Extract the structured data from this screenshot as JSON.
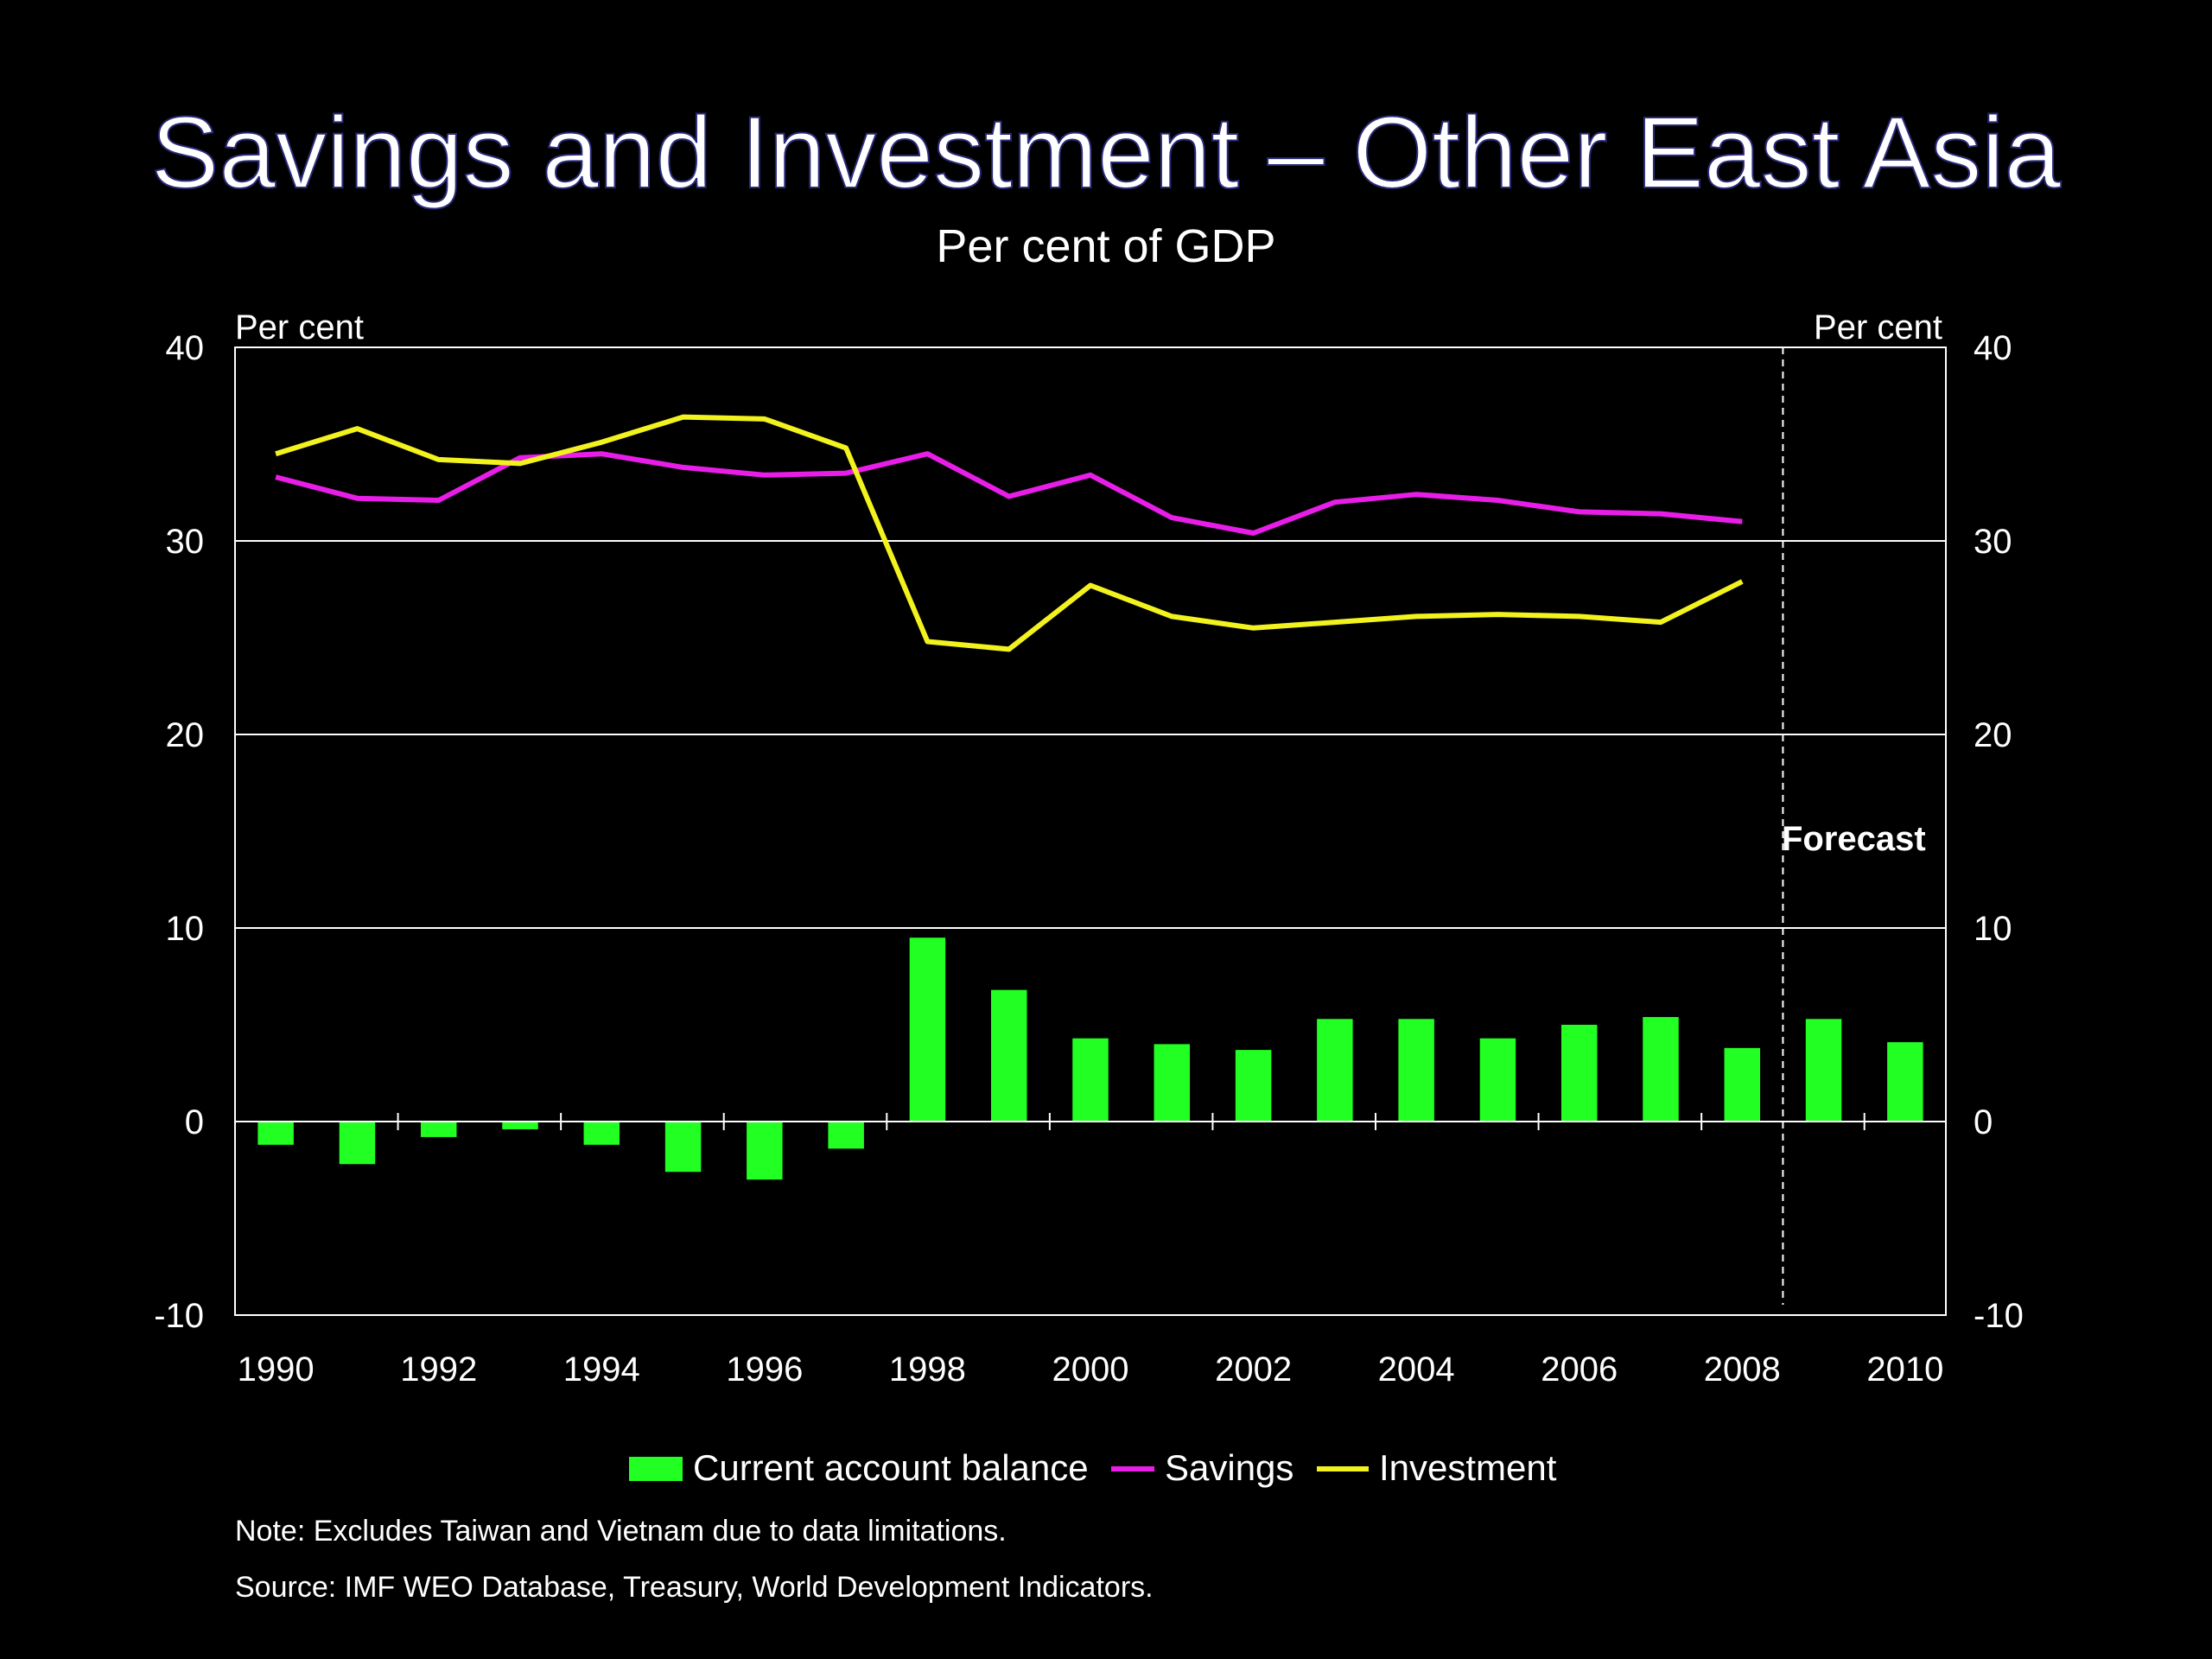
{
  "page": {
    "title": "Savings and Investment – Other East Asia",
    "subtitle": "Per cent of GDP",
    "note": "Note: Excludes Taiwan and Vietnam due to data limitations.",
    "source": "Source: IMF WEO Database, Treasury, World Development Indicators."
  },
  "chart_data": {
    "type": "bar",
    "x": [
      1990,
      1991,
      1992,
      1993,
      1994,
      1995,
      1996,
      1997,
      1998,
      1999,
      2000,
      2001,
      2002,
      2003,
      2004,
      2005,
      2006,
      2007,
      2008,
      2009,
      2010
    ],
    "x_tick_labels": [
      "1990",
      "1992",
      "1994",
      "1996",
      "1998",
      "2000",
      "2002",
      "2004",
      "2006",
      "2008",
      "2010"
    ],
    "ylim": [
      -10,
      40
    ],
    "y_ticks": [
      -10,
      0,
      10,
      20,
      30,
      40
    ],
    "y_tick_labels": [
      "-10",
      "0",
      "10",
      "20",
      "30",
      "40"
    ],
    "ylabel_left": "Per cent",
    "ylabel_right": "Per cent",
    "grid": true,
    "forecast_label": "Forecast",
    "forecast_start_after": 2008,
    "legend_position": "bottom",
    "series": [
      {
        "name": "Current account balance",
        "type": "bar",
        "color": "#22ff22",
        "values": [
          -1.2,
          -2.2,
          -0.8,
          -0.4,
          -1.2,
          -2.6,
          -3.0,
          -1.4,
          9.5,
          6.8,
          4.3,
          4.0,
          3.7,
          5.3,
          5.3,
          4.3,
          5.0,
          5.4,
          3.8,
          5.3,
          4.1
        ]
      },
      {
        "name": "Savings",
        "type": "line",
        "color": "#e81ee8",
        "values": [
          33.3,
          32.2,
          32.1,
          34.3,
          34.5,
          33.8,
          33.4,
          33.5,
          34.5,
          32.3,
          33.4,
          31.2,
          30.4,
          32.0,
          32.4,
          32.1,
          31.5,
          31.4,
          31.0,
          null,
          null
        ]
      },
      {
        "name": "Investment",
        "type": "line",
        "color": "#f2f21e",
        "values": [
          34.5,
          35.8,
          34.2,
          34.0,
          35.1,
          36.4,
          36.3,
          34.8,
          24.8,
          24.4,
          27.7,
          26.1,
          25.5,
          25.8,
          26.1,
          26.2,
          26.1,
          25.8,
          27.9,
          null,
          null
        ]
      }
    ]
  }
}
